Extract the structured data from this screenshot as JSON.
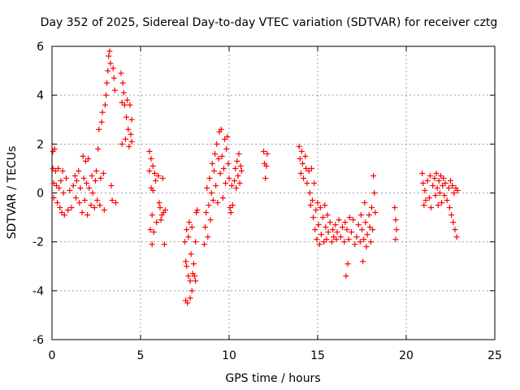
{
  "chart_data": {
    "type": "scatter",
    "title": "Day 352 of 2025, Sidereal Day-to-day VTEC variation (SDTVAR) for receiver cztg",
    "xlabel": "GPS time / hours",
    "ylabel": "SDTVAR / TECUs",
    "xlim": [
      0,
      25
    ],
    "ylim": [
      -6,
      6
    ],
    "xticks": [
      0,
      5,
      10,
      15,
      20,
      25
    ],
    "yticks": [
      -6,
      -4,
      -2,
      0,
      2,
      4,
      6
    ],
    "xtick_labels": [
      "0",
      "5",
      "10",
      "15",
      "20",
      "25"
    ],
    "ytick_labels": [
      "-6",
      "-4",
      "-2",
      "0",
      "2",
      "4",
      "6"
    ],
    "grid": true,
    "marker": "plus",
    "color": "#ff0000",
    "series": [
      {
        "name": "SDTVAR",
        "points": [
          [
            0.05,
            1.7
          ],
          [
            0.05,
            1.0
          ],
          [
            0.1,
            0.4
          ],
          [
            0.1,
            -0.2
          ],
          [
            0.15,
            1.8
          ],
          [
            0.2,
            0.9
          ],
          [
            0.25,
            0.3
          ],
          [
            0.3,
            -0.4
          ],
          [
            0.35,
            1.0
          ],
          [
            0.4,
            0.2
          ],
          [
            0.45,
            -0.6
          ],
          [
            0.5,
            0.5
          ],
          [
            0.55,
            -0.8
          ],
          [
            0.6,
            0.9
          ],
          [
            0.65,
            0.0
          ],
          [
            0.7,
            -0.9
          ],
          [
            0.8,
            0.6
          ],
          [
            0.9,
            -0.7
          ],
          [
            1.0,
            0.1
          ],
          [
            1.1,
            -0.6
          ],
          [
            1.2,
            0.3
          ],
          [
            1.3,
            0.7
          ],
          [
            1.35,
            -0.2
          ],
          [
            1.4,
            0.5
          ],
          [
            1.5,
            0.9
          ],
          [
            1.55,
            -0.4
          ],
          [
            1.6,
            0.2
          ],
          [
            1.7,
            -0.8
          ],
          [
            1.75,
            1.5
          ],
          [
            1.8,
            0.6
          ],
          [
            1.85,
            -0.3
          ],
          [
            1.9,
            1.3
          ],
          [
            1.95,
            0.4
          ],
          [
            2.0,
            -0.9
          ],
          [
            2.05,
            1.4
          ],
          [
            2.1,
            0.2
          ],
          [
            2.2,
            -0.5
          ],
          [
            2.25,
            0.7
          ],
          [
            2.3,
            0.0
          ],
          [
            2.4,
            -0.6
          ],
          [
            2.45,
            0.5
          ],
          [
            2.5,
            0.9
          ],
          [
            2.55,
            -0.3
          ],
          [
            2.6,
            1.8
          ],
          [
            2.65,
            2.6
          ],
          [
            2.7,
            -0.5
          ],
          [
            2.75,
            0.6
          ],
          [
            2.8,
            2.9
          ],
          [
            2.85,
            3.3
          ],
          [
            2.9,
            0.8
          ],
          [
            2.95,
            -0.7
          ],
          [
            3.0,
            3.6
          ],
          [
            3.05,
            4.0
          ],
          [
            3.1,
            4.5
          ],
          [
            3.15,
            5.0
          ],
          [
            3.2,
            5.6
          ],
          [
            3.25,
            5.8
          ],
          [
            3.3,
            5.3
          ],
          [
            3.35,
            0.3
          ],
          [
            3.4,
            -0.3
          ],
          [
            3.45,
            5.1
          ],
          [
            3.5,
            4.7
          ],
          [
            3.55,
            4.2
          ],
          [
            3.6,
            -0.4
          ],
          [
            3.9,
            4.9
          ],
          [
            3.95,
            3.7
          ],
          [
            3.95,
            2.0
          ],
          [
            4.0,
            4.5
          ],
          [
            4.05,
            4.1
          ],
          [
            4.1,
            3.6
          ],
          [
            4.15,
            2.2
          ],
          [
            4.2,
            3.1
          ],
          [
            4.25,
            3.8
          ],
          [
            4.3,
            2.6
          ],
          [
            4.35,
            1.9
          ],
          [
            4.4,
            3.6
          ],
          [
            4.45,
            2.4
          ],
          [
            4.5,
            3.0
          ],
          [
            4.5,
            2.1
          ],
          [
            5.5,
            1.7
          ],
          [
            5.5,
            0.9
          ],
          [
            5.55,
            -1.5
          ],
          [
            5.6,
            1.4
          ],
          [
            5.6,
            0.2
          ],
          [
            5.65,
            -0.9
          ],
          [
            5.65,
            -2.1
          ],
          [
            5.7,
            1.1
          ],
          [
            5.7,
            0.1
          ],
          [
            5.75,
            -1.6
          ],
          [
            5.8,
            0.8
          ],
          [
            5.85,
            0.5
          ],
          [
            5.9,
            -1.2
          ],
          [
            6.0,
            0.7
          ],
          [
            6.05,
            -0.4
          ],
          [
            6.1,
            -0.6
          ],
          [
            6.15,
            -1.1
          ],
          [
            6.2,
            -0.9
          ],
          [
            6.25,
            0.6
          ],
          [
            6.3,
            -0.8
          ],
          [
            6.35,
            -2.1
          ],
          [
            6.4,
            -0.7
          ],
          [
            7.5,
            -2.0
          ],
          [
            7.55,
            -2.8
          ],
          [
            7.55,
            -4.4
          ],
          [
            7.6,
            -1.5
          ],
          [
            7.6,
            -3.0
          ],
          [
            7.65,
            -4.5
          ],
          [
            7.7,
            -1.8
          ],
          [
            7.7,
            -3.4
          ],
          [
            7.75,
            -1.2
          ],
          [
            7.8,
            -3.6
          ],
          [
            7.8,
            -4.3
          ],
          [
            7.85,
            -2.5
          ],
          [
            7.9,
            -4.0
          ],
          [
            7.9,
            -1.4
          ],
          [
            7.95,
            -3.3
          ],
          [
            8.0,
            -2.9
          ],
          [
            8.05,
            -3.4
          ],
          [
            8.1,
            -2.0
          ],
          [
            8.1,
            -3.6
          ],
          [
            8.15,
            -0.8
          ],
          [
            8.2,
            -0.7
          ],
          [
            8.6,
            -2.1
          ],
          [
            8.65,
            -1.4
          ],
          [
            8.7,
            -0.8
          ],
          [
            8.75,
            0.2
          ],
          [
            8.8,
            -1.8
          ],
          [
            8.85,
            -0.5
          ],
          [
            8.9,
            0.6
          ],
          [
            8.95,
            -1.1
          ],
          [
            9.0,
            0.0
          ],
          [
            9.05,
            1.2
          ],
          [
            9.1,
            -0.3
          ],
          [
            9.15,
            0.9
          ],
          [
            9.2,
            1.6
          ],
          [
            9.25,
            0.3
          ],
          [
            9.3,
            2.0
          ],
          [
            9.35,
            -0.4
          ],
          [
            9.4,
            1.4
          ],
          [
            9.45,
            2.5
          ],
          [
            9.5,
            0.8
          ],
          [
            9.55,
            2.6
          ],
          [
            9.6,
            1.5
          ],
          [
            9.65,
            -0.2
          ],
          [
            9.7,
            1.0
          ],
          [
            9.75,
            2.2
          ],
          [
            9.8,
            0.4
          ],
          [
            9.85,
            1.8
          ],
          [
            9.9,
            2.3
          ],
          [
            9.95,
            1.2
          ],
          [
            10.0,
            0.6
          ],
          [
            10.05,
            -0.6
          ],
          [
            10.1,
            -0.8
          ],
          [
            10.15,
            0.3
          ],
          [
            10.2,
            -0.5
          ],
          [
            10.3,
            0.5
          ],
          [
            10.35,
            1.0
          ],
          [
            10.4,
            0.2
          ],
          [
            10.45,
            1.3
          ],
          [
            10.5,
            0.7
          ],
          [
            10.55,
            1.6
          ],
          [
            10.6,
            0.4
          ],
          [
            10.65,
            1.1
          ],
          [
            10.7,
            0.9
          ],
          [
            11.95,
            1.7
          ],
          [
            12.0,
            1.2
          ],
          [
            12.05,
            0.6
          ],
          [
            12.1,
            1.1
          ],
          [
            12.15,
            1.6
          ],
          [
            13.95,
            1.9
          ],
          [
            14.0,
            1.4
          ],
          [
            14.05,
            0.8
          ],
          [
            14.1,
            1.7
          ],
          [
            14.15,
            1.2
          ],
          [
            14.2,
            0.6
          ],
          [
            14.3,
            1.5
          ],
          [
            14.35,
            1.0
          ],
          [
            14.4,
            0.4
          ],
          [
            14.5,
            0.9
          ],
          [
            14.55,
            0.0
          ],
          [
            14.6,
            -0.5
          ],
          [
            14.65,
            1.0
          ],
          [
            14.7,
            -0.3
          ],
          [
            14.75,
            -1.0
          ],
          [
            14.8,
            0.4
          ],
          [
            14.85,
            -1.5
          ],
          [
            14.9,
            -0.7
          ],
          [
            14.95,
            -1.9
          ],
          [
            15.0,
            -0.4
          ],
          [
            15.05,
            -1.3
          ],
          [
            15.1,
            -2.1
          ],
          [
            15.15,
            -0.6
          ],
          [
            15.2,
            -1.7
          ],
          [
            15.3,
            -1.0
          ],
          [
            15.35,
            -2.0
          ],
          [
            15.4,
            -0.5
          ],
          [
            15.45,
            -1.4
          ],
          [
            15.5,
            -1.9
          ],
          [
            15.55,
            -0.9
          ],
          [
            15.6,
            -1.6
          ],
          [
            15.7,
            -1.2
          ],
          [
            15.8,
            -2.0
          ],
          [
            15.85,
            -1.5
          ],
          [
            15.9,
            -1.8
          ],
          [
            16.0,
            -1.3
          ],
          [
            16.05,
            -1.9
          ],
          [
            16.1,
            -1.6
          ],
          [
            16.2,
            -1.1
          ],
          [
            16.3,
            -1.8
          ],
          [
            16.4,
            -1.4
          ],
          [
            16.5,
            -2.0
          ],
          [
            16.55,
            -1.2
          ],
          [
            16.6,
            -3.4
          ],
          [
            16.65,
            -1.5
          ],
          [
            16.7,
            -2.9
          ],
          [
            16.75,
            -1.9
          ],
          [
            16.8,
            -1.0
          ],
          [
            16.9,
            -1.6
          ],
          [
            17.0,
            -1.1
          ],
          [
            17.1,
            -2.1
          ],
          [
            17.2,
            -1.8
          ],
          [
            17.3,
            -1.3
          ],
          [
            17.4,
            -2.0
          ],
          [
            17.45,
            -0.9
          ],
          [
            17.5,
            -1.5
          ],
          [
            17.55,
            -2.8
          ],
          [
            17.6,
            -1.9
          ],
          [
            17.65,
            -0.4
          ],
          [
            17.7,
            -1.2
          ],
          [
            17.75,
            -2.2
          ],
          [
            17.8,
            -1.7
          ],
          [
            17.9,
            -0.9
          ],
          [
            17.95,
            -1.4
          ],
          [
            18.0,
            -2.0
          ],
          [
            18.05,
            -0.6
          ],
          [
            18.1,
            -1.5
          ],
          [
            18.15,
            0.7
          ],
          [
            18.2,
            0.0
          ],
          [
            18.25,
            -0.8
          ],
          [
            19.35,
            -0.6
          ],
          [
            19.4,
            -1.1
          ],
          [
            19.4,
            -1.9
          ],
          [
            19.45,
            -1.5
          ],
          [
            20.9,
            0.8
          ],
          [
            20.95,
            0.4
          ],
          [
            21.0,
            -0.5
          ],
          [
            21.05,
            0.1
          ],
          [
            21.1,
            -0.3
          ],
          [
            21.2,
            0.5
          ],
          [
            21.3,
            -0.2
          ],
          [
            21.35,
            0.7
          ],
          [
            21.4,
            -0.6
          ],
          [
            21.5,
            0.3
          ],
          [
            21.6,
            0.6
          ],
          [
            21.65,
            -0.1
          ],
          [
            21.7,
            0.8
          ],
          [
            21.75,
            0.2
          ],
          [
            21.8,
            -0.5
          ],
          [
            21.85,
            0.5
          ],
          [
            21.9,
            0.0
          ],
          [
            21.95,
            0.7
          ],
          [
            22.0,
            -0.4
          ],
          [
            22.05,
            0.3
          ],
          [
            22.1,
            0.6
          ],
          [
            22.15,
            -0.1
          ],
          [
            22.2,
            0.4
          ],
          [
            22.3,
            -0.3
          ],
          [
            22.4,
            0.2
          ],
          [
            22.45,
            -0.6
          ],
          [
            22.5,
            0.5
          ],
          [
            22.55,
            -0.9
          ],
          [
            22.6,
            0.3
          ],
          [
            22.65,
            -1.2
          ],
          [
            22.7,
            0.0
          ],
          [
            22.75,
            -1.5
          ],
          [
            22.8,
            0.2
          ],
          [
            22.85,
            -1.8
          ],
          [
            22.9,
            0.1
          ]
        ]
      }
    ]
  }
}
